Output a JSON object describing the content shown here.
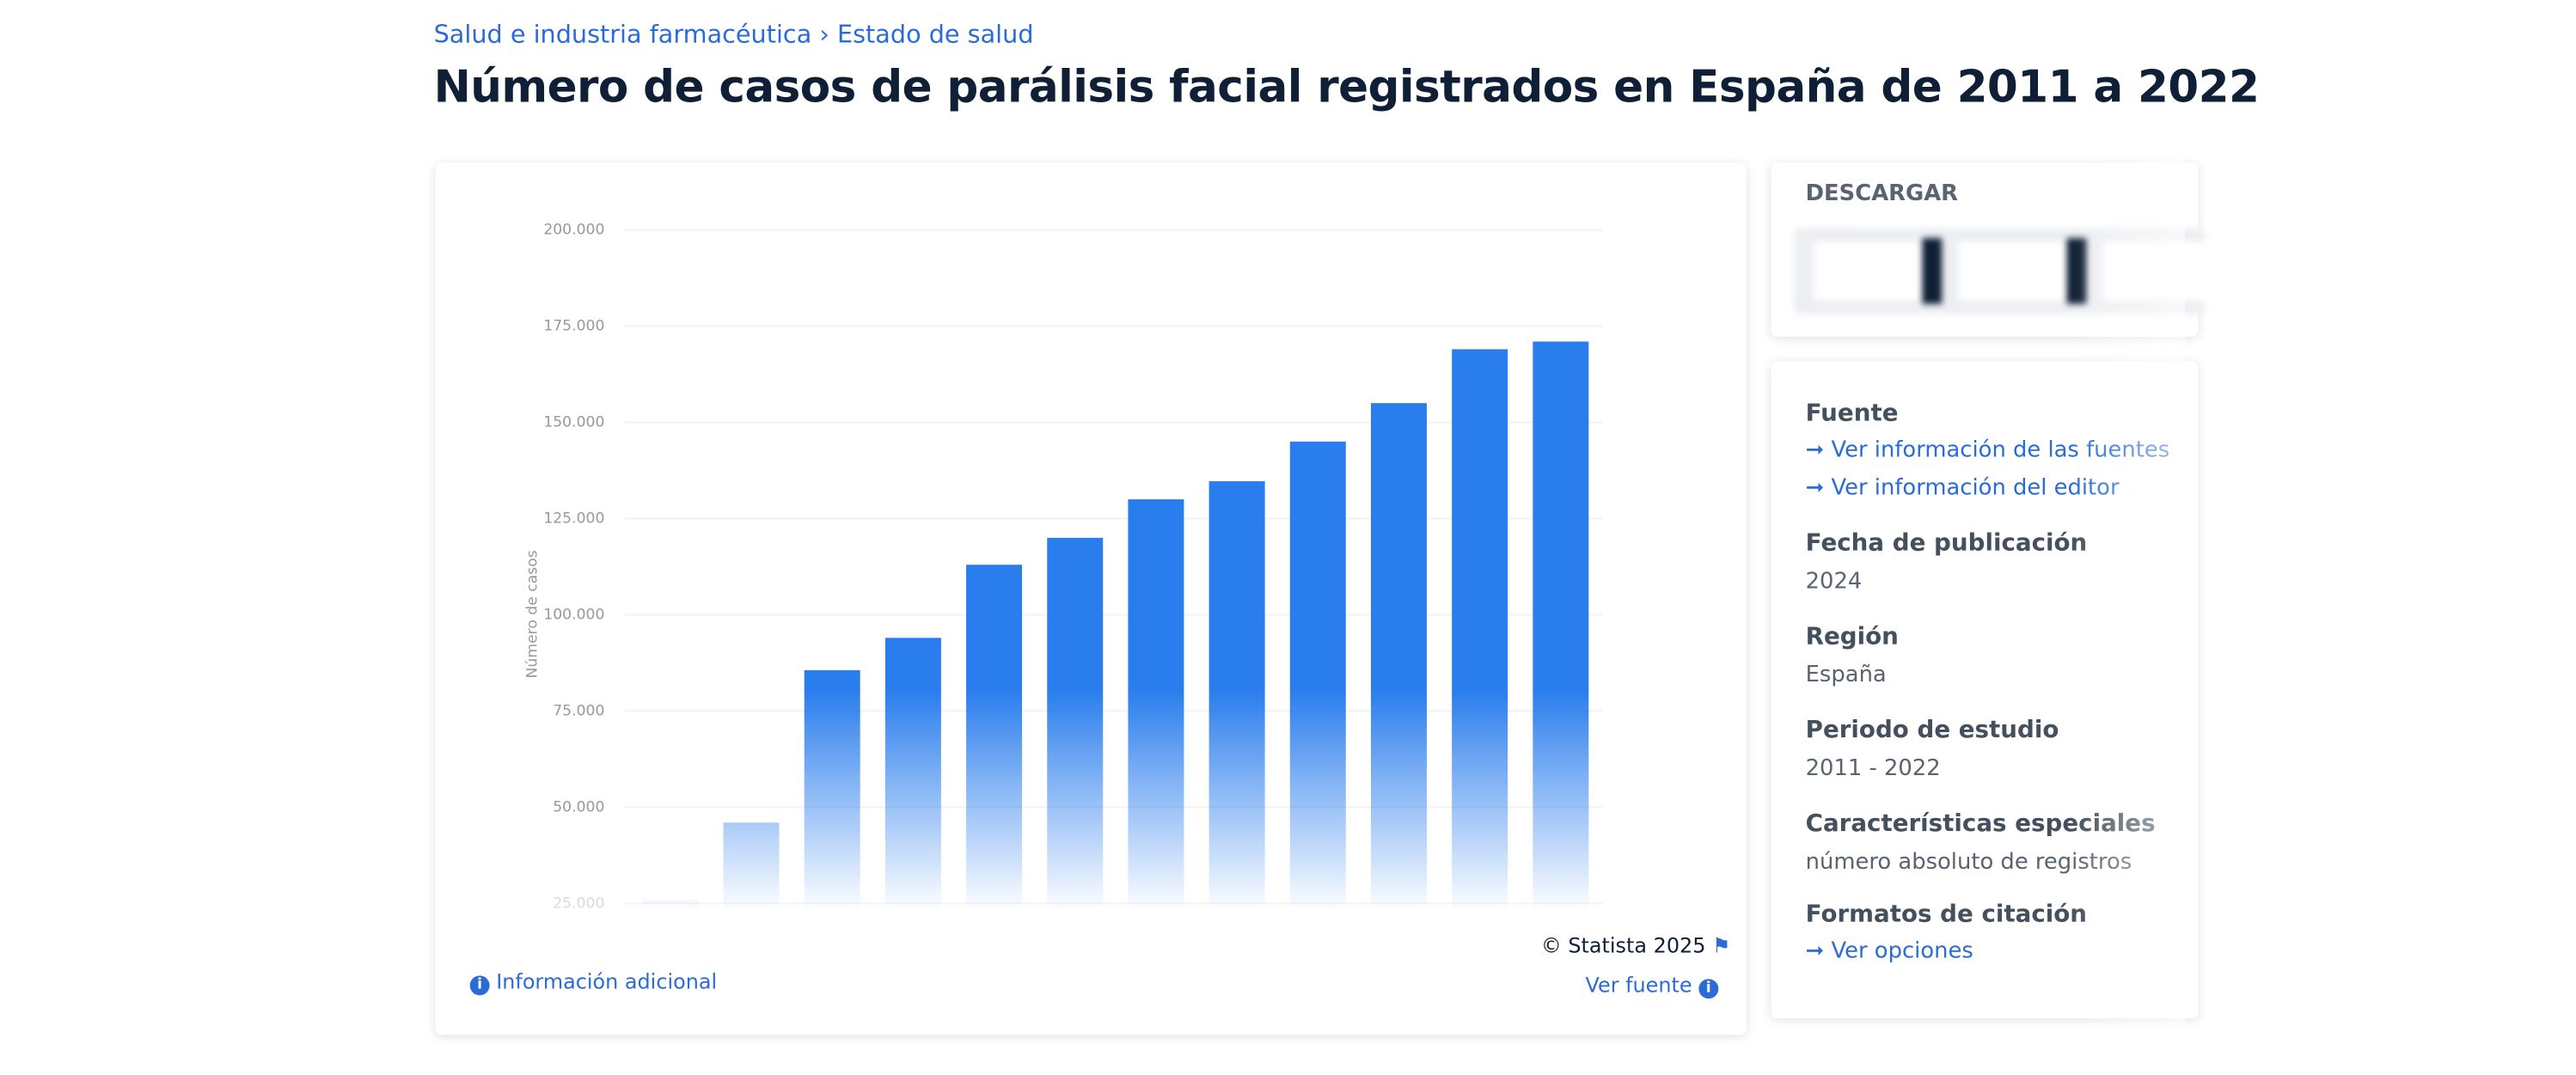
{
  "breadcrumb": [
    "Salud e industria farmacéutica",
    "Estado de salud"
  ],
  "chart_data": {
    "type": "bar",
    "title": "Número de casos de parálisis facial registrados en España de 2011 a 2022",
    "y_label": "Número de casos",
    "color": "#2a7ded",
    "values": [
      26000,
      46000,
      85600,
      94000,
      113000,
      120000,
      130000,
      134700,
      145000,
      155000,
      169000,
      171000
    ],
    "ylim": [
      25000,
      200000
    ],
    "yticks": [
      {
        "value": 25000,
        "label": "25.000"
      },
      {
        "value": 50000,
        "label": "50.000"
      },
      {
        "value": 75000,
        "label": "75.000"
      },
      {
        "value": 100000,
        "label": "100.000"
      },
      {
        "value": 125000,
        "label": "125.000"
      },
      {
        "value": 150000,
        "label": "150.000"
      },
      {
        "value": 175000,
        "label": "175.000"
      },
      {
        "value": 200000,
        "label": "200.000"
      }
    ],
    "grid": true
  },
  "footer": {
    "copyright": "© Statista 2025",
    "source": "Ver fuente",
    "info": "Información adicional"
  },
  "sidebar": {
    "download": "DESCARGAR",
    "source_title": "Fuente",
    "source_links": [
      "Ver información de las fuentes",
      "Ver información del editor"
    ],
    "details": [
      {
        "label": "Fecha de publicación",
        "value": "2024"
      },
      {
        "label": "Región",
        "value": "España"
      },
      {
        "label": "Periodo de estudio",
        "value": "2011 - 2022"
      },
      {
        "label": "Características especiales",
        "value": "número absoluto de registros"
      }
    ],
    "citation_title": "Formatos de citación",
    "citation_link": "Ver opciones"
  }
}
